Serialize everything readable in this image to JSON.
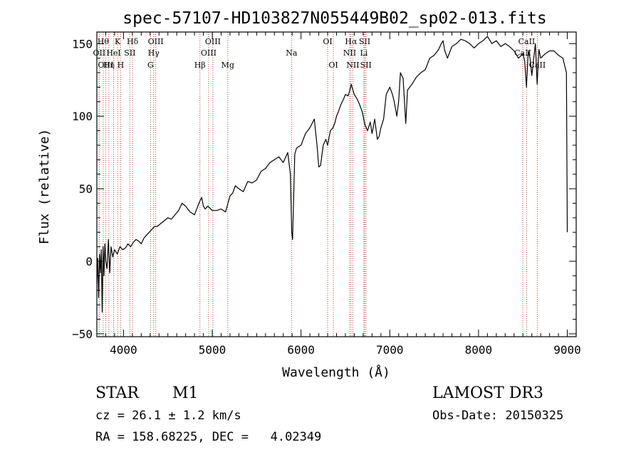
{
  "chart_data": {
    "type": "line",
    "title": "spec-57107-HD103827N055449B02_sp02-013.fits",
    "xlabel": "Wavelength (Å)",
    "ylabel": "Flux (relative)",
    "xlim": [
      3700,
      9100
    ],
    "ylim": [
      -52,
      158
    ],
    "xticks": [
      4000,
      5000,
      6000,
      7000,
      8000,
      9000
    ],
    "yticks": [
      -50,
      0,
      50,
      100,
      150
    ],
    "series": [
      {
        "name": "flux",
        "x": [
          3700,
          3710,
          3720,
          3730,
          3740,
          3750,
          3760,
          3770,
          3780,
          3790,
          3800,
          3815,
          3830,
          3845,
          3860,
          3880,
          3900,
          3930,
          3960,
          3990,
          4020,
          4050,
          4080,
          4110,
          4140,
          4170,
          4200,
          4230,
          4260,
          4290,
          4320,
          4350,
          4380,
          4420,
          4460,
          4500,
          4540,
          4580,
          4620,
          4660,
          4700,
          4750,
          4800,
          4850,
          4880,
          4900,
          4920,
          4950,
          5000,
          5050,
          5100,
          5150,
          5200,
          5230,
          5260,
          5300,
          5350,
          5400,
          5450,
          5500,
          5550,
          5600,
          5650,
          5700,
          5750,
          5800,
          5850,
          5880,
          5895,
          5905,
          5915,
          5930,
          5950,
          6000,
          6050,
          6100,
          6150,
          6180,
          6200,
          6220,
          6250,
          6280,
          6300,
          6330,
          6360,
          6380,
          6400,
          6420,
          6450,
          6480,
          6500,
          6530,
          6550,
          6565,
          6580,
          6600,
          6630,
          6660,
          6690,
          6720,
          6750,
          6780,
          6800,
          6830,
          6860,
          6880,
          6900,
          6930,
          6960,
          7000,
          7030,
          7050,
          7080,
          7100,
          7120,
          7150,
          7180,
          7200,
          7250,
          7300,
          7350,
          7400,
          7450,
          7500,
          7550,
          7580,
          7600,
          7620,
          7650,
          7700,
          7750,
          7800,
          7850,
          7900,
          7950,
          8000,
          8050,
          8100,
          8150,
          8200,
          8250,
          8300,
          8350,
          8400,
          8450,
          8500,
          8520,
          8540,
          8560,
          8580,
          8600,
          8640,
          8660,
          8680,
          8700,
          8750,
          8800,
          8850,
          8900,
          8950,
          8990,
          9000
        ],
        "values": [
          -15,
          2,
          -25,
          5,
          -8,
          8,
          -35,
          10,
          -10,
          12,
          0,
          -5,
          15,
          -8,
          10,
          3,
          8,
          5,
          10,
          8,
          9,
          12,
          10,
          13,
          15,
          14,
          12,
          16,
          18,
          20,
          22,
          24,
          24,
          26,
          28,
          30,
          29,
          32,
          35,
          40,
          38,
          34,
          32,
          40,
          44,
          38,
          36,
          38,
          35,
          35,
          36,
          34,
          45,
          47,
          52,
          50,
          48,
          55,
          54,
          56,
          62,
          64,
          68,
          70,
          72,
          68,
          75,
          60,
          20,
          15,
          40,
          74,
          78,
          80,
          88,
          92,
          98,
          80,
          65,
          66,
          80,
          84,
          80,
          90,
          92,
          95,
          100,
          103,
          108,
          112,
          115,
          114,
          118,
          122,
          119,
          115,
          112,
          108,
          103,
          94,
          90,
          96,
          88,
          98,
          84,
          86,
          92,
          98,
          115,
          120,
          115,
          110,
          100,
          110,
          130,
          126,
          95,
          118,
          122,
          127,
          130,
          132,
          140,
          142,
          146,
          150,
          152,
          145,
          140,
          148,
          150,
          153,
          152,
          150,
          147,
          150,
          152,
          155,
          150,
          152,
          148,
          150,
          148,
          145,
          140,
          143,
          138,
          120,
          145,
          140,
          128,
          150,
          122,
          146,
          140,
          143,
          145,
          145,
          142,
          140,
          130,
          20
        ]
      }
    ],
    "lines": [
      {
        "x": 3771,
        "label": "Hθ",
        "row": 1
      },
      {
        "x": 3727,
        "label": "OII",
        "row": 2
      },
      {
        "x": 3800,
        "label": "OIII",
        "row": 3
      },
      {
        "x": 3835,
        "label": "Hη",
        "row": 3
      },
      {
        "x": 3889,
        "label": "HeI",
        "row": 2
      },
      {
        "x": 3934,
        "label": "K",
        "row": 1
      },
      {
        "x": 3968,
        "label": "H",
        "row": 3
      },
      {
        "x": 4072,
        "label": "SII",
        "row": 2
      },
      {
        "x": 4102,
        "label": "Hδ",
        "row": 1
      },
      {
        "x": 4305,
        "label": "G",
        "row": 3
      },
      {
        "x": 4340,
        "label": "Hγ",
        "row": 2
      },
      {
        "x": 4363,
        "label": "OIII",
        "row": 1
      },
      {
        "x": 4861,
        "label": "Hβ",
        "row": 3
      },
      {
        "x": 4959,
        "label": "OIII",
        "row": 2
      },
      {
        "x": 5007,
        "label": "OIII",
        "row": 1
      },
      {
        "x": 5175,
        "label": "Mg",
        "row": 3
      },
      {
        "x": 5893,
        "label": "Na",
        "row": 2
      },
      {
        "x": 6300,
        "label": "OI",
        "row": 1
      },
      {
        "x": 6364,
        "label": "OI",
        "row": 3
      },
      {
        "x": 6548,
        "label": "NII",
        "row": 2
      },
      {
        "x": 6563,
        "label": "Hα",
        "row": 1
      },
      {
        "x": 6584,
        "label": "NII",
        "row": 3
      },
      {
        "x": 6708,
        "label": "Li",
        "row": 2
      },
      {
        "x": 6717,
        "label": "SII",
        "row": 1
      },
      {
        "x": 6731,
        "label": "SII",
        "row": 3
      },
      {
        "x": 8498,
        "label": "CaII",
        "row": 2
      },
      {
        "x": 8542,
        "label": "CaII",
        "row": 1
      },
      {
        "x": 8662,
        "label": "CaII",
        "row": 3
      }
    ]
  },
  "info": {
    "object_class": "STAR",
    "subclass": "M1",
    "survey": "LAMOST DR3",
    "redshift": "cz = 26.1 ± 1.2 km/s",
    "obs_date": "Obs-Date: 20150325",
    "coords": "RA = 158.68225, DEC =   4.02349"
  }
}
